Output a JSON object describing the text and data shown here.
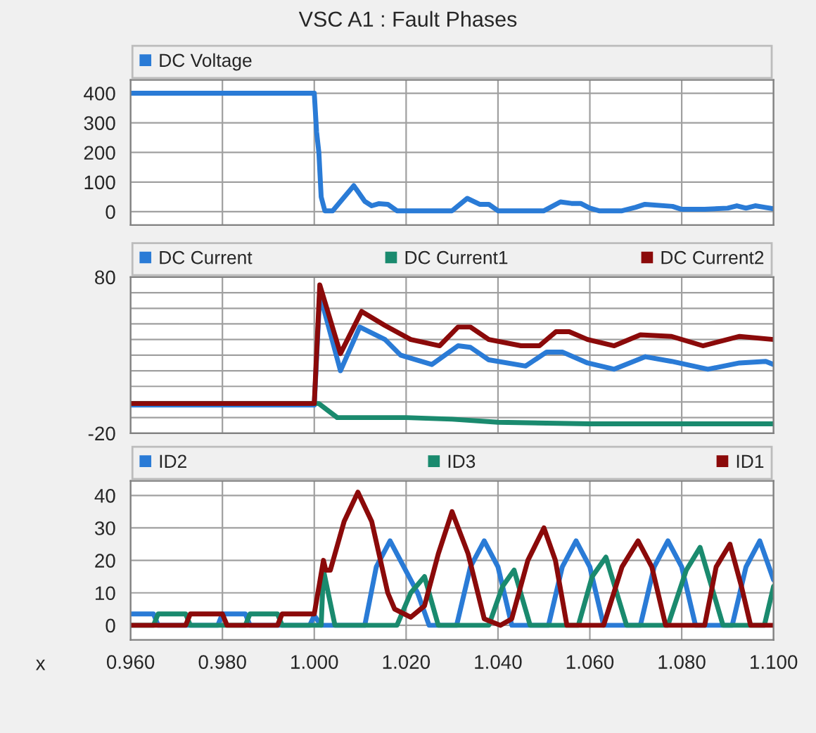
{
  "chart_data": [
    {
      "type": "line",
      "title": "VSC A1 : Fault Phases",
      "legend": "top",
      "marker": "none",
      "line_style": "solid",
      "grid": true,
      "tick_labels": "y",
      "xlim": [
        0.96,
        1.1
      ],
      "xticks": [
        0.96,
        0.98,
        1.0,
        1.02,
        1.04,
        1.06,
        1.08,
        1.1
      ],
      "ylim": [
        -45,
        445
      ],
      "yticks": [
        0,
        100,
        200,
        300,
        400
      ],
      "series": [
        {
          "name": "DC Voltage",
          "color": "#2a7bd6",
          "x": [
            0.96,
            1.0,
            1.0005,
            1.001,
            1.0015,
            1.0023,
            1.004,
            1.0086,
            1.011,
            1.0125,
            1.014,
            1.016,
            1.018,
            1.03,
            1.0333,
            1.036,
            1.038,
            1.04,
            1.05,
            1.0536,
            1.056,
            1.058,
            1.06,
            1.062,
            1.067,
            1.07,
            1.072,
            1.078,
            1.08,
            1.085,
            1.09,
            1.092,
            1.094,
            1.096,
            1.098,
            1.1
          ],
          "values": [
            400,
            400,
            270,
            200,
            50,
            3,
            3,
            88,
            35,
            20,
            27,
            25,
            3,
            3,
            45,
            25,
            25,
            3,
            3,
            33,
            28,
            28,
            12,
            3,
            3,
            15,
            25,
            18,
            8,
            8,
            12,
            20,
            12,
            20,
            15,
            10
          ]
        }
      ]
    },
    {
      "type": "line",
      "legend": "top",
      "marker": "none",
      "line_style": "solid",
      "grid": true,
      "tick_labels": "y",
      "xlim": [
        0.96,
        1.1
      ],
      "xticks": [
        0.96,
        0.98,
        1.0,
        1.02,
        1.04,
        1.06,
        1.08,
        1.1
      ],
      "ylim": [
        -20,
        80
      ],
      "yticks": [
        -20,
        {
          "value": -10,
          "label": null
        },
        {
          "value": 0,
          "label": null
        },
        {
          "value": 10,
          "label": null
        },
        {
          "value": 20,
          "label": null
        },
        {
          "value": 30,
          "label": null
        },
        {
          "value": 40,
          "label": null
        },
        {
          "value": 50,
          "label": null
        },
        {
          "value": 60,
          "label": null
        },
        {
          "value": 70,
          "label": null
        },
        80
      ],
      "series": [
        {
          "name": "DC Current",
          "color": "#2a7bd6",
          "x": [
            0.96,
            1.0,
            1.0012,
            1.0057,
            1.0099,
            1.0154,
            1.0188,
            1.0256,
            1.0313,
            1.034,
            1.038,
            1.046,
            1.0506,
            1.054,
            1.0595,
            1.0653,
            1.0721,
            1.0778,
            1.0857,
            1.0926,
            1.0983,
            1.1
          ],
          "values": [
            -2,
            -2,
            69,
            20,
            48,
            40,
            30,
            24,
            36,
            35,
            27,
            23,
            32,
            32,
            25,
            21,
            29,
            26,
            21,
            25,
            26,
            24
          ]
        },
        {
          "name": "DC Current1",
          "color": "#1a8a6e",
          "x": [
            0.96,
            1.0,
            1.001,
            1.005,
            1.02,
            1.03,
            1.04,
            1.06,
            1.1
          ],
          "values": [
            -1,
            -1,
            -1,
            -10,
            -10,
            -11,
            -13,
            -14,
            -14
          ]
        },
        {
          "name": "DC Current2",
          "color": "#8b0a0a",
          "x": [
            0.96,
            1.0,
            1.0012,
            1.0057,
            1.0103,
            1.0154,
            1.021,
            1.0273,
            1.0313,
            1.034,
            1.038,
            1.045,
            1.049,
            1.0526,
            1.0555,
            1.0595,
            1.0653,
            1.071,
            1.0778,
            1.0846,
            1.0926,
            1.1
          ],
          "values": [
            -1,
            -1,
            75,
            31,
            58,
            49,
            40,
            36,
            48,
            48,
            40,
            36,
            36,
            45,
            45,
            40,
            36,
            43,
            42,
            36,
            42,
            40
          ]
        }
      ]
    },
    {
      "type": "line",
      "legend": "top",
      "marker": "none",
      "line_style": "solid",
      "grid": true,
      "xlabel": "x",
      "xlim": [
        0.96,
        1.1
      ],
      "xticks": [
        {
          "value": 0.96,
          "label": "0.960"
        },
        {
          "value": 0.98,
          "label": "0.980"
        },
        {
          "value": 1.0,
          "label": "1.000"
        },
        {
          "value": 1.02,
          "label": "1.020"
        },
        {
          "value": 1.04,
          "label": "1.040"
        },
        {
          "value": 1.06,
          "label": "1.060"
        },
        {
          "value": 1.08,
          "label": "1.080"
        },
        {
          "value": 1.1,
          "label": "1.100"
        }
      ],
      "ylim": [
        -4.5,
        44.5
      ],
      "yticks": [
        0,
        10,
        20,
        30,
        40
      ],
      "series": [
        {
          "name": "ID2",
          "color": "#2a7bd6",
          "x": [
            0.96,
            0.965,
            0.966,
            0.979,
            0.98,
            0.985,
            0.986,
            0.999,
            1.0,
            1.0015,
            1.011,
            1.0135,
            1.0165,
            1.0195,
            1.0225,
            1.025,
            1.031,
            1.034,
            1.037,
            1.04,
            1.043,
            1.051,
            1.054,
            1.057,
            1.06,
            1.063,
            1.071,
            1.074,
            1.077,
            1.08,
            1.083,
            1.091,
            1.094,
            1.097,
            1.1
          ],
          "values": [
            3.5,
            3.5,
            0,
            0,
            3.5,
            3.5,
            0,
            0,
            3,
            0,
            0,
            18,
            26,
            18,
            10,
            0,
            0,
            18,
            26,
            18,
            0,
            0,
            18,
            26,
            18,
            0,
            0,
            18,
            26,
            18,
            0,
            0,
            18,
            26,
            14
          ]
        },
        {
          "name": "ID3",
          "color": "#1a8a6e",
          "x": [
            0.96,
            0.965,
            0.966,
            0.972,
            0.973,
            0.985,
            0.986,
            0.992,
            0.993,
            1.0015,
            1.002,
            1.0045,
            1.018,
            1.021,
            1.024,
            1.027,
            1.038,
            1.041,
            1.0435,
            1.047,
            1.0575,
            1.0605,
            1.0635,
            1.068,
            1.077,
            1.081,
            1.084,
            1.089,
            1.098,
            1.1
          ],
          "values": [
            0,
            0,
            3.5,
            3.5,
            0,
            0,
            3.5,
            3.5,
            0,
            0,
            17,
            0,
            0,
            10,
            15,
            0,
            0,
            12,
            17,
            0,
            0,
            15,
            21,
            0,
            0,
            17,
            24,
            0,
            0,
            12
          ]
        },
        {
          "name": "ID1",
          "color": "#8b0a0a",
          "x": [
            0.96,
            0.972,
            0.973,
            0.98,
            0.981,
            0.992,
            0.993,
            1.0,
            1.002,
            1.0025,
            1.0035,
            1.0065,
            1.0095,
            1.0125,
            1.016,
            1.0175,
            1.021,
            1.024,
            1.027,
            1.03,
            1.0335,
            1.037,
            1.0405,
            1.043,
            1.0465,
            1.05,
            1.0525,
            1.055,
            1.063,
            1.067,
            1.0705,
            1.0735,
            1.0765,
            1.085,
            1.0875,
            1.0905,
            1.093,
            1.095,
            1.1
          ],
          "values": [
            0,
            0,
            3.5,
            3.5,
            0,
            0,
            3.5,
            3.5,
            20,
            17,
            17,
            32,
            41,
            32,
            10,
            5,
            2.5,
            6,
            22,
            35,
            22,
            2,
            0,
            2,
            20,
            30,
            20,
            0,
            0,
            18,
            26,
            18,
            0,
            0,
            18,
            25,
            12,
            0,
            0
          ]
        }
      ]
    }
  ]
}
